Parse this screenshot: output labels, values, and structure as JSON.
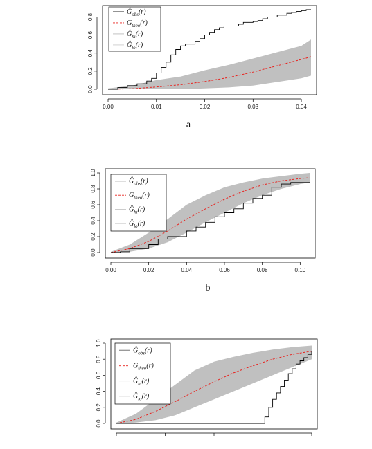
{
  "colors": {
    "envelope": "#c0c0c0",
    "observed": "#000000",
    "theoretical": "#e8231f",
    "frame": "#000000"
  },
  "legend_text": {
    "obs": {
      "base": "Ĝ",
      "sub": "obs",
      "arg": "(r)"
    },
    "theo": {
      "base": "G",
      "sub": "theo",
      "arg": "(r)"
    },
    "hi": {
      "base": "Ĝ",
      "sub": "hi",
      "arg": "(r)"
    },
    "lo": {
      "base": "Ĝ",
      "sub": "lo",
      "arg": "(r)"
    }
  },
  "chart_data": [
    {
      "type": "line",
      "label": "a",
      "xlim": [
        0,
        0.042
      ],
      "ylim": [
        0,
        0.88
      ],
      "xticks": [
        "0.00",
        "0.01",
        "0.02",
        "0.03",
        "0.04"
      ],
      "yticks": [
        "0.0",
        "0.2",
        "0.4",
        "0.6",
        "0.8"
      ],
      "legend_position": "top-left",
      "series": [
        {
          "key": "obs",
          "style": "step",
          "x": [
            0,
            0.002,
            0.004,
            0.006,
            0.008,
            0.009,
            0.01,
            0.011,
            0.012,
            0.013,
            0.014,
            0.015,
            0.016,
            0.017,
            0.018,
            0.019,
            0.02,
            0.021,
            0.022,
            0.023,
            0.024,
            0.025,
            0.026,
            0.027,
            0.028,
            0.029,
            0.03,
            0.031,
            0.032,
            0.033,
            0.034,
            0.035,
            0.036,
            0.037,
            0.038,
            0.039,
            0.04,
            0.041
          ],
          "y": [
            0,
            0.02,
            0.04,
            0.06,
            0.09,
            0.12,
            0.18,
            0.24,
            0.3,
            0.38,
            0.44,
            0.48,
            0.5,
            0.5,
            0.53,
            0.56,
            0.6,
            0.63,
            0.66,
            0.68,
            0.7,
            0.7,
            0.7,
            0.72,
            0.74,
            0.74,
            0.75,
            0.76,
            0.78,
            0.8,
            0.8,
            0.82,
            0.82,
            0.84,
            0.85,
            0.86,
            0.87,
            0.88
          ]
        },
        {
          "key": "theo",
          "style": "dashed",
          "x": [
            0,
            0.005,
            0.01,
            0.015,
            0.02,
            0.025,
            0.03,
            0.035,
            0.04,
            0.042
          ],
          "y": [
            0,
            0.005,
            0.025,
            0.05,
            0.085,
            0.13,
            0.19,
            0.26,
            0.33,
            0.36
          ]
        },
        {
          "key": "hi",
          "style": "envelope-upper",
          "x": [
            0,
            0.005,
            0.01,
            0.015,
            0.02,
            0.025,
            0.03,
            0.035,
            0.04,
            0.042
          ],
          "y": [
            0.01,
            0.04,
            0.1,
            0.14,
            0.21,
            0.27,
            0.34,
            0.41,
            0.48,
            0.55
          ]
        },
        {
          "key": "lo",
          "style": "envelope-lower",
          "x": [
            0,
            0.005,
            0.01,
            0.015,
            0.02,
            0.025,
            0.03,
            0.035,
            0.04,
            0.042
          ],
          "y": [
            0,
            0,
            0,
            0,
            0.01,
            0.02,
            0.04,
            0.08,
            0.12,
            0.15
          ]
        }
      ]
    },
    {
      "type": "line",
      "label": "b",
      "xlim": [
        0,
        0.105
      ],
      "ylim": [
        0,
        1.0
      ],
      "xticks": [
        "0.00",
        "0.02",
        "0.04",
        "0.06",
        "0.08",
        "0.10"
      ],
      "yticks": [
        "0.0",
        "0.2",
        "0.4",
        "0.6",
        "0.8",
        "1.0"
      ],
      "legend_position": "top-left",
      "series": [
        {
          "key": "obs",
          "style": "step",
          "x": [
            0,
            0.005,
            0.01,
            0.02,
            0.025,
            0.03,
            0.035,
            0.04,
            0.045,
            0.05,
            0.055,
            0.06,
            0.065,
            0.07,
            0.075,
            0.08,
            0.085,
            0.09,
            0.095,
            0.1
          ],
          "y": [
            0,
            0.01,
            0.05,
            0.1,
            0.17,
            0.2,
            0.2,
            0.27,
            0.32,
            0.38,
            0.45,
            0.5,
            0.55,
            0.62,
            0.68,
            0.72,
            0.82,
            0.86,
            0.88,
            0.88
          ]
        },
        {
          "key": "theo",
          "style": "dashed",
          "x": [
            0,
            0.01,
            0.02,
            0.03,
            0.04,
            0.05,
            0.06,
            0.07,
            0.08,
            0.09,
            0.1,
            0.105
          ],
          "y": [
            0,
            0.05,
            0.14,
            0.27,
            0.42,
            0.55,
            0.67,
            0.77,
            0.85,
            0.9,
            0.93,
            0.94
          ]
        },
        {
          "key": "hi",
          "style": "envelope-upper",
          "x": [
            0,
            0.01,
            0.02,
            0.03,
            0.04,
            0.05,
            0.06,
            0.07,
            0.08,
            0.09,
            0.1,
            0.105
          ],
          "y": [
            0.01,
            0.1,
            0.25,
            0.42,
            0.6,
            0.72,
            0.82,
            0.88,
            0.93,
            0.96,
            0.99,
            1.0
          ]
        },
        {
          "key": "lo",
          "style": "envelope-lower",
          "x": [
            0,
            0.01,
            0.02,
            0.03,
            0.04,
            0.05,
            0.06,
            0.07,
            0.08,
            0.09,
            0.1,
            0.105
          ],
          "y": [
            0,
            0.01,
            0.05,
            0.13,
            0.25,
            0.38,
            0.5,
            0.62,
            0.72,
            0.8,
            0.86,
            0.88
          ]
        }
      ]
    },
    {
      "type": "line",
      "label": "",
      "xlim": [
        0,
        1
      ],
      "ylim": [
        0,
        1.0
      ],
      "xticks": [],
      "xtick_count": 5,
      "yticks": [
        "0.0",
        "0.2",
        "0.4",
        "0.6",
        "0.8",
        "1.0"
      ],
      "legend_position": "top-left",
      "series": [
        {
          "key": "obs",
          "style": "step",
          "x": [
            0,
            0.55,
            0.74,
            0.76,
            0.78,
            0.8,
            0.82,
            0.84,
            0.86,
            0.88,
            0.9,
            0.92,
            0.94,
            0.96,
            0.98,
            1.0
          ],
          "y": [
            0,
            0,
            0,
            0.08,
            0.2,
            0.3,
            0.38,
            0.46,
            0.54,
            0.62,
            0.68,
            0.74,
            0.78,
            0.82,
            0.86,
            0.9
          ]
        },
        {
          "key": "theo",
          "style": "dashed",
          "x": [
            0,
            0.1,
            0.2,
            0.3,
            0.4,
            0.5,
            0.6,
            0.7,
            0.8,
            0.9,
            1.0
          ],
          "y": [
            0,
            0.05,
            0.15,
            0.27,
            0.4,
            0.52,
            0.63,
            0.72,
            0.8,
            0.86,
            0.9
          ]
        },
        {
          "key": "hi",
          "style": "envelope-upper",
          "x": [
            0,
            0.1,
            0.2,
            0.3,
            0.4,
            0.5,
            0.6,
            0.7,
            0.8,
            0.9,
            1.0
          ],
          "y": [
            0.01,
            0.12,
            0.3,
            0.48,
            0.66,
            0.77,
            0.83,
            0.88,
            0.92,
            0.95,
            0.97
          ]
        },
        {
          "key": "lo",
          "style": "envelope-lower",
          "x": [
            0,
            0.1,
            0.2,
            0.3,
            0.4,
            0.5,
            0.6,
            0.7,
            0.8,
            0.9,
            1.0
          ],
          "y": [
            0,
            0.01,
            0.04,
            0.1,
            0.2,
            0.3,
            0.4,
            0.5,
            0.6,
            0.7,
            0.8
          ]
        }
      ]
    }
  ]
}
